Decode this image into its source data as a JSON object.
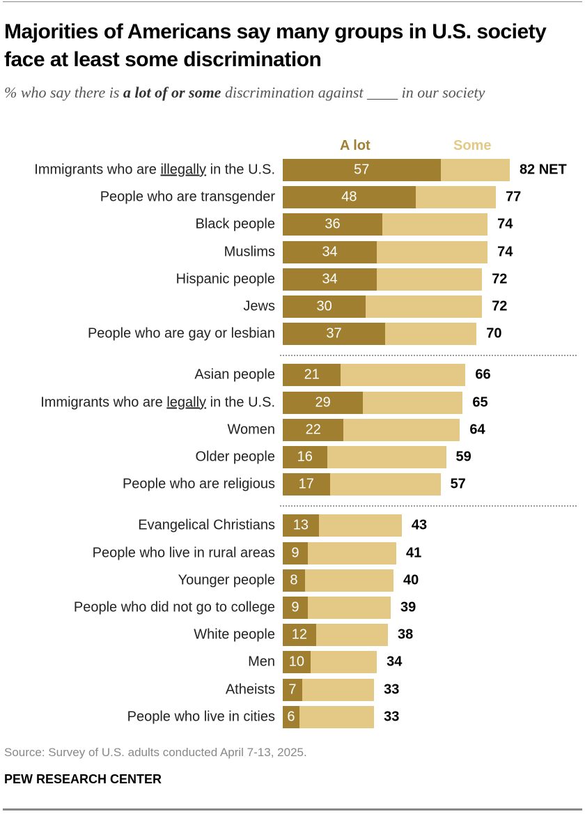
{
  "title": "Majorities of Americans say many groups in U.S. society face at least some discrimination",
  "subtitle": {
    "pre": "% who say there is ",
    "bold": "a lot of or some",
    "post": " discrimination against ____ in our society"
  },
  "source": "Source: Survey of U.S. adults conducted April 7-13, 2025.",
  "brand": "PEW RESEARCH CENTER",
  "colors": {
    "a_lot": "#A07F30",
    "some": "#E3C985"
  },
  "chart_data": {
    "type": "bar",
    "orientation": "horizontal",
    "stacked": true,
    "legend": [
      {
        "name": "A lot",
        "color": "#A07F30"
      },
      {
        "name": "Some",
        "color": "#E3C985"
      }
    ],
    "legend_placement": "top",
    "net_suffix_first": " NET",
    "groups": [
      [
        {
          "label": {
            "pre": "Immigrants who are ",
            "u": "illegally",
            "post": " in the U.S."
          },
          "a_lot": 57,
          "net": 82
        },
        {
          "label": {
            "pre": "People who are transgender"
          },
          "a_lot": 48,
          "net": 77
        },
        {
          "label": {
            "pre": "Black people"
          },
          "a_lot": 36,
          "net": 74
        },
        {
          "label": {
            "pre": "Muslims"
          },
          "a_lot": 34,
          "net": 74
        },
        {
          "label": {
            "pre": "Hispanic people"
          },
          "a_lot": 34,
          "net": 72
        },
        {
          "label": {
            "pre": "Jews"
          },
          "a_lot": 30,
          "net": 72
        },
        {
          "label": {
            "pre": "People who are gay or lesbian"
          },
          "a_lot": 37,
          "net": 70
        }
      ],
      [
        {
          "label": {
            "pre": "Asian people"
          },
          "a_lot": 21,
          "net": 66
        },
        {
          "label": {
            "pre": "Immigrants who are ",
            "u": "legally",
            "post": " in the U.S."
          },
          "a_lot": 29,
          "net": 65
        },
        {
          "label": {
            "pre": "Women"
          },
          "a_lot": 22,
          "net": 64
        },
        {
          "label": {
            "pre": "Older people"
          },
          "a_lot": 16,
          "net": 59
        },
        {
          "label": {
            "pre": "People who are religious"
          },
          "a_lot": 17,
          "net": 57
        }
      ],
      [
        {
          "label": {
            "pre": "Evangelical Christians"
          },
          "a_lot": 13,
          "net": 43
        },
        {
          "label": {
            "pre": "People who live in rural areas"
          },
          "a_lot": 9,
          "net": 41
        },
        {
          "label": {
            "pre": "Younger people"
          },
          "a_lot": 8,
          "net": 40
        },
        {
          "label": {
            "pre": "People who did not go to college"
          },
          "a_lot": 9,
          "net": 39
        },
        {
          "label": {
            "pre": "White people"
          },
          "a_lot": 12,
          "net": 38
        },
        {
          "label": {
            "pre": "Men"
          },
          "a_lot": 10,
          "net": 34
        },
        {
          "label": {
            "pre": "Atheists"
          },
          "a_lot": 7,
          "net": 33
        },
        {
          "label": {
            "pre": "People who live in cities"
          },
          "a_lot": 6,
          "net": 33
        }
      ]
    ]
  }
}
